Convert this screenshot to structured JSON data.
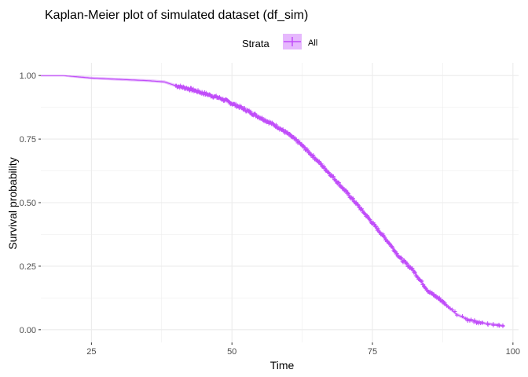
{
  "chart_data": {
    "type": "line",
    "title": "Kaplan-Meier plot of simulated dataset (df_sim)",
    "xlabel": "Time",
    "ylabel": "Survival probability",
    "xlim": [
      16,
      101
    ],
    "ylim": [
      -0.05,
      1.05
    ],
    "x_ticks": [
      25,
      50,
      75,
      100
    ],
    "x_tick_labels": [
      "25",
      "50",
      "75",
      "100"
    ],
    "y_ticks": [
      0,
      0.25,
      0.5,
      0.75,
      1.0
    ],
    "y_tick_labels": [
      "0.00",
      "0.25",
      "0.50",
      "0.75",
      "1.00"
    ],
    "x_minor_ticks": [
      37.5,
      62.5,
      87.5
    ],
    "y_minor_ticks": [
      0.125,
      0.375,
      0.625,
      0.875
    ],
    "grid": true,
    "legend": {
      "title": "Strata",
      "position": "top",
      "entries": [
        "All"
      ]
    },
    "series": [
      {
        "name": "All",
        "color": "#C04DF9",
        "confidence_band": true,
        "censor_marks": true,
        "x": [
          16,
          20,
          25,
          30,
          35,
          38,
          40,
          42,
          45,
          48,
          50,
          52,
          55,
          58,
          60,
          62,
          65,
          68,
          70,
          72,
          75,
          78,
          80,
          82,
          85,
          87,
          90,
          92,
          95,
          97,
          98.5
        ],
        "y": [
          1.0,
          1.0,
          0.99,
          0.985,
          0.98,
          0.975,
          0.96,
          0.95,
          0.93,
          0.91,
          0.89,
          0.87,
          0.835,
          0.8,
          0.77,
          0.735,
          0.67,
          0.6,
          0.55,
          0.5,
          0.42,
          0.34,
          0.28,
          0.24,
          0.15,
          0.12,
          0.06,
          0.04,
          0.025,
          0.02,
          0.015
        ]
      }
    ]
  }
}
